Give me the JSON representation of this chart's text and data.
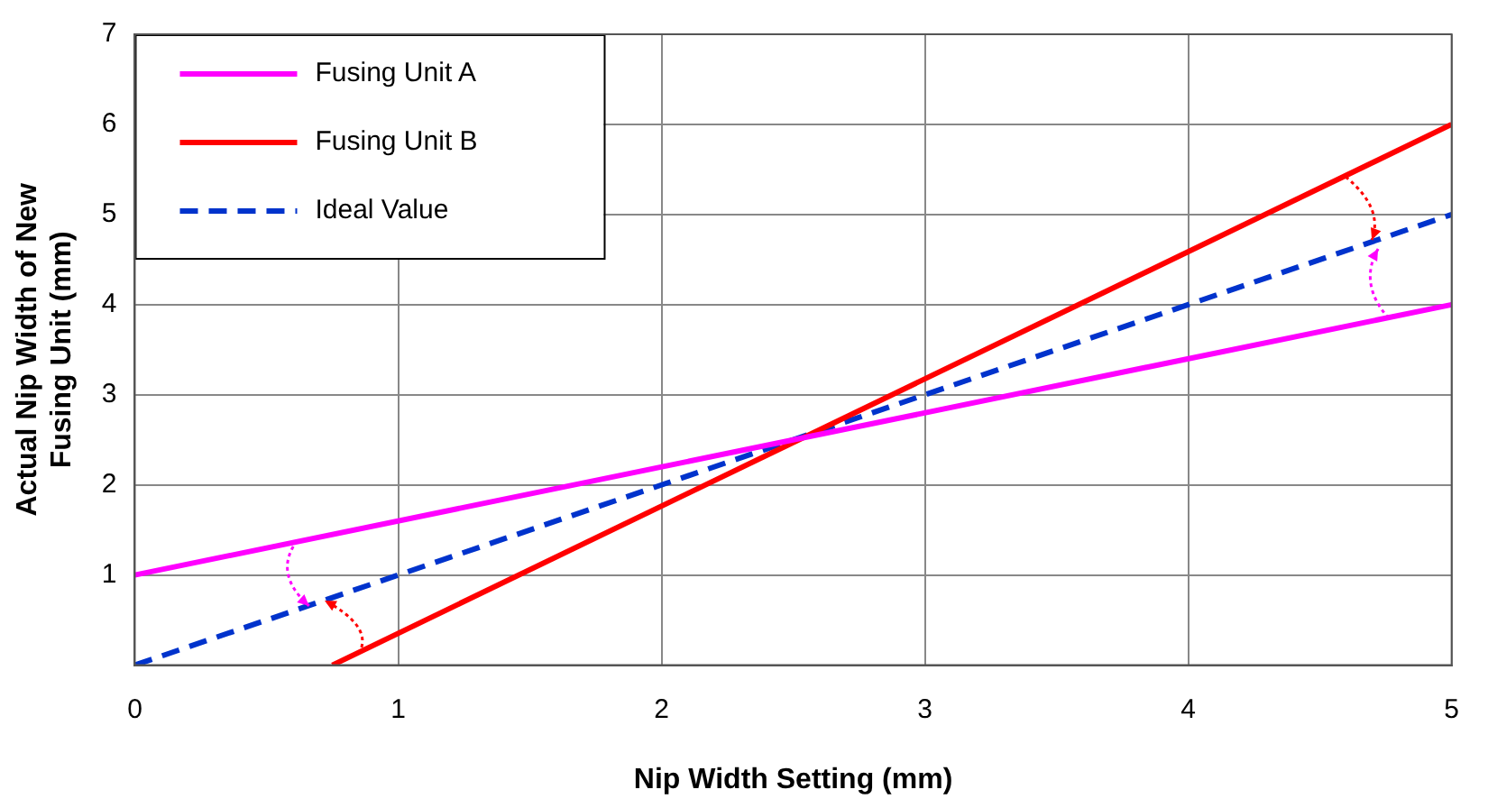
{
  "chart_data": {
    "type": "line",
    "xlabel": "Nip Width Setting (mm)",
    "ylabel": "Actual Nip Width of New\nFusing Unit (mm)",
    "xlim": [
      0,
      5
    ],
    "xticks": [
      0,
      1,
      2,
      3,
      4,
      5
    ],
    "ylim": [
      0,
      7
    ],
    "yticks": [
      {
        "value": 0,
        "label": null
      },
      1,
      2,
      3,
      4,
      5,
      6,
      7
    ],
    "grid": true,
    "legend": "top left",
    "marker": "none",
    "series": [
      {
        "name": "Fusing Unit A",
        "color": "#ff00ff",
        "x": [
          0,
          5
        ],
        "values": [
          1,
          4
        ],
        "line_style": "solid"
      },
      {
        "name": "Fusing Unit B",
        "color": "#ff0000",
        "x": [
          0.75,
          5
        ],
        "values": [
          0,
          6
        ],
        "line_style": "solid"
      },
      {
        "name": "Ideal Value",
        "color": "#0033cc",
        "x": [
          0,
          5
        ],
        "values": [
          0,
          5
        ],
        "line_style": "dashed"
      }
    ]
  }
}
